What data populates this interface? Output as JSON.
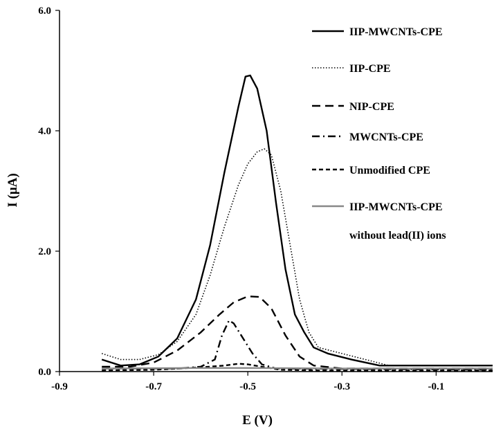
{
  "chart_data": {
    "type": "line",
    "xlabel": "E (V)",
    "ylabel": "I (μA)",
    "xlim": [
      -0.9,
      0.02
    ],
    "ylim": [
      0,
      6
    ],
    "xticks": [
      "-0.9",
      "-0.7",
      "-0.5",
      "-0.3",
      "-0.1"
    ],
    "yticks": [
      "0.0",
      "2.0",
      "4.0",
      "6.0"
    ],
    "grid": false,
    "legend_position": "top-right",
    "series": [
      {
        "name": "IIP-MWCNTs-CPE",
        "style": "solid",
        "color": "#000000",
        "points": [
          [
            -0.81,
            0.2
          ],
          [
            -0.77,
            0.1
          ],
          [
            -0.73,
            0.12
          ],
          [
            -0.69,
            0.25
          ],
          [
            -0.65,
            0.55
          ],
          [
            -0.61,
            1.2
          ],
          [
            -0.58,
            2.1
          ],
          [
            -0.55,
            3.3
          ],
          [
            -0.52,
            4.4
          ],
          [
            -0.505,
            4.9
          ],
          [
            -0.495,
            4.92
          ],
          [
            -0.48,
            4.7
          ],
          [
            -0.46,
            4.0
          ],
          [
            -0.44,
            2.8
          ],
          [
            -0.42,
            1.7
          ],
          [
            -0.4,
            0.95
          ],
          [
            -0.38,
            0.65
          ],
          [
            -0.36,
            0.4
          ],
          [
            -0.33,
            0.3
          ],
          [
            -0.28,
            0.2
          ],
          [
            -0.22,
            0.1
          ],
          [
            -0.15,
            0.1
          ],
          [
            0.02,
            0.1
          ]
        ]
      },
      {
        "name": "IIP-CPE",
        "style": "dotted",
        "color": "#000000",
        "points": [
          [
            -0.81,
            0.3
          ],
          [
            -0.77,
            0.2
          ],
          [
            -0.73,
            0.2
          ],
          [
            -0.69,
            0.28
          ],
          [
            -0.65,
            0.5
          ],
          [
            -0.61,
            0.95
          ],
          [
            -0.58,
            1.6
          ],
          [
            -0.55,
            2.4
          ],
          [
            -0.52,
            3.1
          ],
          [
            -0.5,
            3.45
          ],
          [
            -0.48,
            3.65
          ],
          [
            -0.465,
            3.7
          ],
          [
            -0.45,
            3.6
          ],
          [
            -0.43,
            3.0
          ],
          [
            -0.41,
            2.1
          ],
          [
            -0.39,
            1.2
          ],
          [
            -0.37,
            0.65
          ],
          [
            -0.35,
            0.4
          ],
          [
            -0.3,
            0.3
          ],
          [
            -0.25,
            0.2
          ],
          [
            -0.2,
            0.1
          ],
          [
            -0.1,
            0.1
          ],
          [
            0.02,
            0.1
          ]
        ]
      },
      {
        "name": "NIP-CPE",
        "style": "dashed",
        "color": "#000000",
        "points": [
          [
            -0.81,
            0.08
          ],
          [
            -0.75,
            0.08
          ],
          [
            -0.7,
            0.15
          ],
          [
            -0.65,
            0.35
          ],
          [
            -0.6,
            0.65
          ],
          [
            -0.56,
            0.95
          ],
          [
            -0.53,
            1.15
          ],
          [
            -0.5,
            1.25
          ],
          [
            -0.475,
            1.24
          ],
          [
            -0.45,
            1.05
          ],
          [
            -0.42,
            0.6
          ],
          [
            -0.39,
            0.25
          ],
          [
            -0.36,
            0.1
          ],
          [
            -0.3,
            0.05
          ],
          [
            0.02,
            0.05
          ]
        ]
      },
      {
        "name": "MWCNTs-CPE",
        "style": "dash-dot",
        "color": "#000000",
        "points": [
          [
            -0.81,
            0.05
          ],
          [
            -0.65,
            0.05
          ],
          [
            -0.6,
            0.08
          ],
          [
            -0.57,
            0.2
          ],
          [
            -0.555,
            0.6
          ],
          [
            -0.54,
            0.85
          ],
          [
            -0.53,
            0.8
          ],
          [
            -0.51,
            0.55
          ],
          [
            -0.49,
            0.3
          ],
          [
            -0.47,
            0.12
          ],
          [
            -0.44,
            0.05
          ],
          [
            0.02,
            0.03
          ]
        ]
      },
      {
        "name": "Unmodified CPE",
        "style": "short-dash",
        "color": "#000000",
        "points": [
          [
            -0.81,
            0.02
          ],
          [
            -0.7,
            0.03
          ],
          [
            -0.6,
            0.07
          ],
          [
            -0.55,
            0.1
          ],
          [
            -0.52,
            0.13
          ],
          [
            -0.5,
            0.12
          ],
          [
            -0.47,
            0.08
          ],
          [
            -0.43,
            0.03
          ],
          [
            -0.35,
            0.02
          ],
          [
            0.02,
            0.02
          ]
        ]
      },
      {
        "name": "IIP-MWCNTs-CPE",
        "name_line2": "without lead(II) ions",
        "style": "solid",
        "color": "#888888",
        "points": [
          [
            -0.81,
            0.05
          ],
          [
            -0.6,
            0.06
          ],
          [
            -0.5,
            0.06
          ],
          [
            -0.3,
            0.05
          ],
          [
            0.02,
            0.05
          ]
        ]
      }
    ]
  }
}
